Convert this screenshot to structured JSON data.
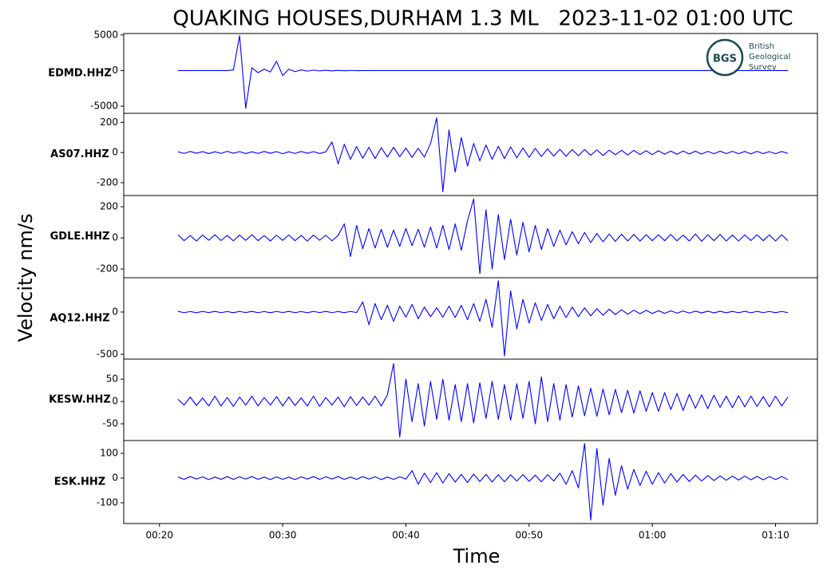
{
  "chart_data": {
    "type": "line",
    "title": "QUAKING HOUSES,DURHAM 1.3 ML   2023-11-02 01:00 UTC",
    "xlabel": "Time",
    "ylabel": "Velocity nm/s",
    "logo": {
      "mark": "BGS",
      "lines": [
        "British",
        "Geological",
        "Survey"
      ]
    },
    "xlim": [
      17.1,
      73.4
    ],
    "xticks": [
      {
        "value": 20,
        "label": "00:20"
      },
      {
        "value": 30,
        "label": "00:30"
      },
      {
        "value": 40,
        "label": "00:40"
      },
      {
        "value": 50,
        "label": "00:50"
      },
      {
        "value": 60,
        "label": "01:00"
      },
      {
        "value": 70,
        "label": "01:10"
      }
    ],
    "x": [
      21.5,
      22,
      22.5,
      23,
      23.5,
      24,
      24.5,
      25,
      25.5,
      26,
      26.5,
      27,
      27.5,
      28,
      28.5,
      29,
      29.5,
      30,
      30.5,
      31,
      31.5,
      32,
      32.5,
      33,
      33.5,
      34,
      34.5,
      35,
      35.5,
      36,
      36.5,
      37,
      37.5,
      38,
      38.5,
      39,
      39.5,
      40,
      40.5,
      41,
      41.5,
      42,
      42.5,
      43,
      43.5,
      44,
      44.5,
      45,
      45.5,
      46,
      46.5,
      47,
      47.5,
      48,
      48.5,
      49,
      49.5,
      50,
      50.5,
      51,
      51.5,
      52,
      52.5,
      53,
      53.5,
      54,
      54.5,
      55,
      55.5,
      56,
      56.5,
      57,
      57.5,
      58,
      58.5,
      59,
      59.5,
      60,
      60.5,
      61,
      61.5,
      62,
      62.5,
      63,
      63.5,
      64,
      64.5,
      65,
      65.5,
      66,
      66.5,
      67,
      67.5,
      68,
      68.5,
      69,
      69.5,
      70,
      70.5,
      71
    ],
    "panels": [
      {
        "name": "EDMD.HHZ",
        "color": "#0000ff",
        "ylim": [
          -6000,
          5200
        ],
        "yticks": [
          -5000,
          0,
          5000
        ],
        "values": [
          0,
          0,
          0,
          0,
          0,
          0,
          0,
          0,
          0,
          100,
          4900,
          -5300,
          400,
          -300,
          200,
          -200,
          1300,
          -700,
          200,
          -150,
          100,
          -80,
          60,
          -50,
          40,
          -40,
          30,
          -30,
          20,
          -20,
          0,
          0,
          0,
          0,
          0,
          0,
          0,
          0,
          0,
          0,
          0,
          0,
          0,
          0,
          0,
          0,
          0,
          0,
          0,
          0,
          0,
          0,
          0,
          0,
          0,
          0,
          0,
          0,
          0,
          0,
          0,
          0,
          0,
          0,
          0,
          0,
          0,
          0,
          0,
          0,
          0,
          0,
          0,
          0,
          0,
          0,
          0,
          0,
          0,
          0,
          0,
          0,
          0,
          0,
          0,
          0,
          0,
          0,
          0,
          0,
          0,
          0,
          0,
          0,
          0,
          0,
          0,
          0,
          0,
          0
        ]
      },
      {
        "name": "AS07.HHZ",
        "color": "#0000ff",
        "ylim": [
          -285,
          260
        ],
        "yticks": [
          -200,
          0,
          200
        ],
        "values": [
          5,
          -6,
          7,
          -5,
          6,
          -7,
          5,
          -6,
          8,
          -5,
          6,
          -7,
          5,
          -6,
          7,
          -5,
          6,
          -8,
          5,
          -6,
          7,
          -5,
          6,
          -7,
          5,
          70,
          -75,
          55,
          -45,
          40,
          -38,
          35,
          -40,
          32,
          -30,
          35,
          -28,
          30,
          -32,
          28,
          -30,
          60,
          230,
          -260,
          150,
          -130,
          100,
          -90,
          60,
          -55,
          50,
          -45,
          42,
          -40,
          38,
          -35,
          30,
          -32,
          28,
          -26,
          25,
          -24,
          22,
          -25,
          20,
          -22,
          20,
          -18,
          18,
          -20,
          16,
          -15,
          15,
          -16,
          14,
          -13,
          12,
          -14,
          12,
          -11,
          10,
          -12,
          10,
          -9,
          9,
          -10,
          8,
          -8,
          9,
          -7,
          8,
          -8,
          7,
          -9,
          8,
          -7,
          6,
          -8,
          7,
          -6
        ]
      },
      {
        "name": "GDLE.HHZ",
        "color": "#0000ff",
        "ylim": [
          -256,
          272
        ],
        "yticks": [
          -200,
          0,
          200
        ],
        "values": [
          20,
          -18,
          15,
          -20,
          18,
          -15,
          20,
          -17,
          16,
          -19,
          18,
          -16,
          20,
          -18,
          15,
          -20,
          17,
          -16,
          19,
          -18,
          16,
          -20,
          18,
          -15,
          17,
          -19,
          16,
          90,
          -120,
          80,
          -70,
          60,
          -65,
          55,
          -60,
          50,
          -55,
          60,
          -50,
          55,
          -60,
          70,
          -65,
          80,
          -75,
          90,
          -80,
          110,
          250,
          -230,
          180,
          -200,
          150,
          -140,
          120,
          -110,
          100,
          -90,
          80,
          -75,
          60,
          -55,
          50,
          -45,
          40,
          -38,
          35,
          -30,
          28,
          -25,
          25,
          -22,
          24,
          -20,
          22,
          -20,
          20,
          -18,
          20,
          -18,
          22,
          -19,
          18,
          -20,
          25,
          -22,
          20,
          -18,
          22,
          -20,
          18,
          -20,
          19,
          -17,
          20,
          -18,
          19,
          -20,
          20,
          -18
        ]
      },
      {
        "name": "AQ12.HHZ",
        "color": "#0000ff",
        "ylim": [
          -557,
          406
        ],
        "yticks": [
          -500,
          0
        ],
        "values": [
          8,
          -7,
          6,
          -8,
          7,
          -6,
          8,
          -7,
          6,
          -8,
          7,
          -6,
          8,
          -7,
          6,
          -8,
          7,
          -6,
          8,
          -7,
          6,
          -8,
          7,
          -6,
          8,
          -7,
          6,
          -8,
          7,
          -6,
          120,
          -150,
          100,
          -90,
          80,
          -110,
          70,
          -60,
          90,
          -80,
          60,
          -55,
          50,
          -60,
          70,
          -65,
          80,
          -90,
          100,
          -110,
          150,
          -180,
          370,
          -520,
          250,
          -200,
          150,
          -130,
          110,
          -100,
          90,
          -80,
          70,
          -65,
          60,
          -55,
          50,
          -45,
          40,
          -38,
          35,
          -30,
          28,
          -25,
          22,
          -20,
          20,
          -18,
          16,
          -15,
          14,
          -13,
          12,
          -12,
          11,
          -10,
          10,
          -10,
          9,
          -9,
          8,
          -8,
          9,
          -8,
          8,
          -7,
          7,
          -8,
          7,
          -7
        ]
      },
      {
        "name": "KESW.HHZ",
        "color": "#0000ff",
        "ylim": [
          -87.5,
          95
        ],
        "yticks": [
          -50,
          0,
          50
        ],
        "values": [
          5,
          -8,
          10,
          -9,
          8,
          -10,
          12,
          -10,
          9,
          -11,
          10,
          -8,
          12,
          -10,
          9,
          -8,
          11,
          -10,
          10,
          -9,
          8,
          -10,
          12,
          -11,
          9,
          -8,
          10,
          -12,
          11,
          -9,
          10,
          -8,
          12,
          -10,
          15,
          85,
          -80,
          50,
          -45,
          40,
          -55,
          45,
          -40,
          50,
          -42,
          38,
          -45,
          40,
          -48,
          42,
          -38,
          45,
          -40,
          38,
          -42,
          40,
          -38,
          45,
          -50,
          55,
          -45,
          40,
          -42,
          38,
          -35,
          35,
          -32,
          30,
          -33,
          28,
          -30,
          27,
          -25,
          25,
          -26,
          24,
          -22,
          20,
          -22,
          20,
          -18,
          18,
          -20,
          16,
          -15,
          15,
          -16,
          14,
          -13,
          12,
          -14,
          13,
          -12,
          12,
          -11,
          11,
          -12,
          12,
          -10,
          10
        ]
      },
      {
        "name": "ESK.HHZ",
        "color": "#0000ff",
        "ylim": [
          -184,
          152
        ],
        "yticks": [
          -100,
          0,
          100
        ],
        "values": [
          4,
          -5,
          6,
          -4,
          5,
          -6,
          4,
          -5,
          6,
          -5,
          5,
          -4,
          6,
          -5,
          4,
          -6,
          5,
          -5,
          4,
          -6,
          5,
          -4,
          6,
          -5,
          5,
          -4,
          6,
          -5,
          4,
          -5,
          6,
          -4,
          5,
          -6,
          4,
          -5,
          5,
          -4,
          30,
          -25,
          20,
          -18,
          22,
          -20,
          18,
          -16,
          15,
          -18,
          16,
          -14,
          15,
          -16,
          14,
          -15,
          13,
          -12,
          14,
          -13,
          12,
          -15,
          14,
          -12,
          20,
          -25,
          30,
          -40,
          140,
          -170,
          120,
          -110,
          80,
          -70,
          50,
          -45,
          35,
          -30,
          28,
          -25,
          22,
          -20,
          18,
          -16,
          15,
          -14,
          12,
          -12,
          10,
          -10,
          9,
          -9,
          8,
          -8,
          8,
          -7,
          7,
          -7,
          6,
          -6,
          6,
          -6
        ]
      }
    ]
  }
}
